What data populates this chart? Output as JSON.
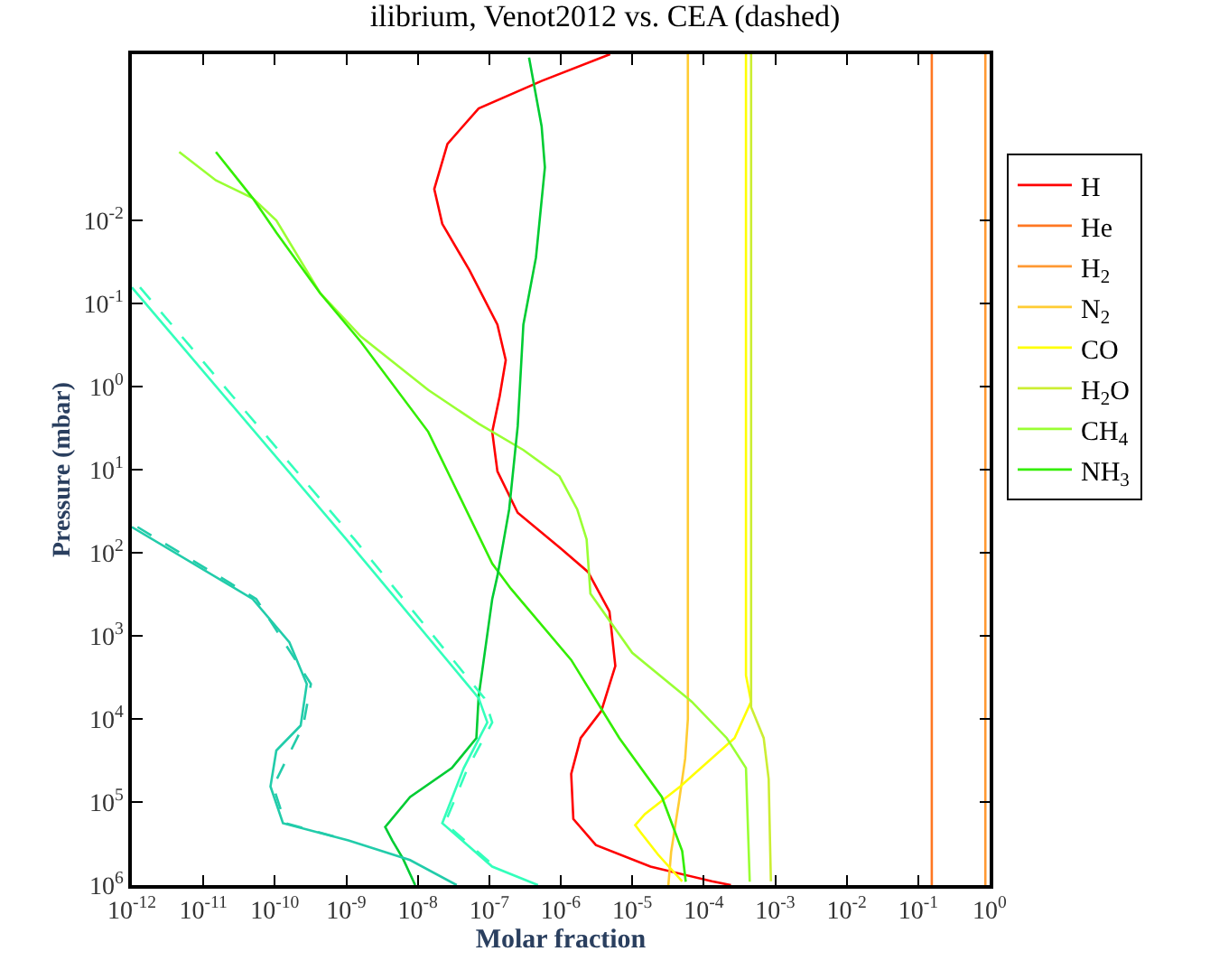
{
  "chart_data": {
    "type": "line",
    "title": "ilibrium, Venot2012 vs. CEA (dashed)",
    "xlabel": "Molar fraction",
    "ylabel": "Pressure (mbar)",
    "log": "xy",
    "legend": "right",
    "marker": "none",
    "line_style": "solid",
    "xlim": [
      1e-12,
      1
    ],
    "ylim": [
      1000000.0,
      0.0001
    ],
    "xticks": [
      {
        "value": 1e-12,
        "label": "10$^{-12}$"
      },
      {
        "value": 1e-11,
        "label": "10$^{-11}$"
      },
      {
        "value": 1e-10,
        "label": "10$^{-10}$"
      },
      {
        "value": 1e-09,
        "label": "10$^{-9}$"
      },
      {
        "value": 1e-08,
        "label": "10$^{-8}$"
      },
      {
        "value": 1e-07,
        "label": "10$^{-7}$"
      },
      {
        "value": 1e-06,
        "label": "10$^{-6}$"
      },
      {
        "value": 1e-05,
        "label": "10$^{-5}$"
      },
      {
        "value": 0.0001,
        "label": "10$^{-4}$"
      },
      {
        "value": 0.001,
        "label": "10$^{-3}$"
      },
      {
        "value": 0.01,
        "label": "10$^{-2}$"
      },
      {
        "value": 0.1,
        "label": "10$^{-1}$"
      },
      {
        "value": 1,
        "label": "10$^{0}$"
      }
    ],
    "yticks": [
      {
        "value": 0.01,
        "label": "10$^{-2}$"
      },
      {
        "value": 0.1,
        "label": "10$^{-1}$"
      },
      {
        "value": 1,
        "label": "10$^{0}$"
      },
      {
        "value": 10,
        "label": "10$^{1}$"
      },
      {
        "value": 100,
        "label": "10$^{2}$"
      },
      {
        "value": 1000,
        "label": "10$^{3}$"
      },
      {
        "value": 10000.0,
        "label": "10$^{4}$"
      },
      {
        "value": 100000.0,
        "label": "10$^{5}$"
      },
      {
        "value": 1000000.0,
        "label": "10$^{6}$"
      }
    ],
    "series": [
      {
        "name": "H",
        "color": "#ff0000",
        "x": [
          4.9e-06,
          5.4e-07,
          7.1e-08,
          2.6e-08,
          1.7e-08,
          2.2e-08,
          5.3e-08,
          1.3e-07,
          1.7e-07,
          1.4e-07,
          1.1e-07,
          1.3e-07,
          2.5e-07,
          1e-06,
          2.4e-06,
          4.8e-06,
          5.8e-06,
          3.7e-06,
          1.9e-06,
          1.4e-06,
          1.5e-06,
          3.1e-06,
          1.8e-05,
          0.00013,
          0.00024
        ],
        "values": [
          0.0001,
          0.00021,
          0.00045,
          0.0012,
          0.0042,
          0.011,
          0.04,
          0.18,
          0.48,
          1.3,
          3.5,
          10.5,
          33,
          89,
          170,
          510,
          2300,
          8000,
          17000.0,
          46000.0,
          160000.0,
          330000.0,
          600000.0,
          900000.0,
          1000000.0
        ]
      },
      {
        "name": "He",
        "color": "#ff7722",
        "x": [
          0.155,
          0.155
        ],
        "values": [
          0.0001,
          1000000.0
        ]
      },
      {
        "name": "H$_{2}$",
        "color": "#ff9933",
        "x": [
          0.87,
          0.87
        ],
        "values": [
          0.0001,
          1000000.0
        ]
      },
      {
        "name": "N$_{2}$",
        "color": "#ffcc33",
        "x": [
          6e-05,
          6e-05,
          5.5e-05,
          4.5e-05,
          3.5e-05,
          3.2e-05
        ],
        "values": [
          0.0001,
          10000.0,
          30000.0,
          100000.0,
          400000.0,
          1000000.0
        ]
      },
      {
        "name": "CO",
        "color": "#ffff00",
        "x": [
          0.00039,
          0.00039,
          0.00046,
          0.00027,
          4.7e-05,
          1.5e-05,
          1.1e-05,
          1.3e-05,
          2.3e-05,
          5e-05
        ],
        "values": [
          0.0001,
          3000,
          6200,
          17000.0,
          65000.0,
          140000.0,
          190000.0,
          230000.0,
          430000.0,
          900000.0
        ]
      },
      {
        "name": "H$_{2}$O",
        "color": "#ccee33",
        "x": [
          0.00046,
          0.00046,
          0.00069,
          0.00081,
          0.00087
        ],
        "values": [
          0.0001,
          7200,
          17000.0,
          53000.0,
          900000.0
        ]
      },
      {
        "name": "CH$_{4}$",
        "color": "#99ff33",
        "x": [
          4.6e-12,
          1.5e-11,
          4.9e-11,
          1.05e-10,
          4.3e-10,
          1.6e-09,
          1.4e-08,
          7.1e-08,
          3e-07,
          9.6e-07,
          1.7e-06,
          2.3e-06,
          2.6e-06,
          1e-05,
          6.8e-05,
          0.00021,
          0.00039,
          0.00044
        ],
        "values": [
          0.0015,
          0.0033,
          0.0054,
          0.01,
          0.075,
          0.25,
          1.1,
          2.8,
          5.8,
          12,
          30,
          69,
          310,
          1600,
          6200,
          17000.0,
          39000.0,
          910000.0
        ]
      },
      {
        "name": "NH$_{3}$",
        "color": "#33ee00",
        "x": [
          1.5e-11,
          4.9e-11,
          1.05e-10,
          4.3e-10,
          1.6e-09,
          1.4e-08,
          3e-08,
          1.1e-07,
          2e-07,
          1.4e-06,
          6.6e-06,
          2.6e-05,
          5e-05,
          5.6e-05
        ],
        "values": [
          0.0015,
          0.0054,
          0.014,
          0.075,
          0.29,
          3.5,
          13.5,
          135,
          270,
          1950,
          17000.0,
          87000.0,
          390000.0,
          910000.0
        ]
      },
      {
        "color": "#00cc33",
        "x": [
          3.6e-07,
          5.4e-07,
          6e-07,
          4.5e-07,
          3e-07,
          2.5e-07,
          1.9e-07,
          1.3e-07,
          1.1e-07,
          7.1e-08,
          6.6e-08,
          3e-08,
          7.8e-09,
          3.5e-09,
          4.4e-09,
          6.2e-09,
          9.2e-09
        ],
        "values": [
          0.00011,
          0.00074,
          0.0023,
          0.028,
          0.18,
          3,
          30,
          190,
          360,
          5400,
          17000.0,
          39000.0,
          87000.0,
          200000.0,
          290000.0,
          480000.0,
          1000000.0
        ]
      },
      {
        "color": "#33ffbb",
        "x": [
          1e-12,
          1e-09,
          2.4e-09,
          7.1e-08,
          9.4e-08,
          4.4e-08,
          2.2e-08,
          1.1e-07,
          4.8e-07
        ],
        "values": [
          0.064,
          69,
          170,
          5600,
          11000.0,
          39000.0,
          180000.0,
          600000.0,
          1000000.0
        ]
      },
      {
        "color": "#22ccaa",
        "x": [
          1e-12,
          4.9e-11,
          1.6e-10,
          2.8e-10,
          2.3e-10,
          1.05e-10,
          8.7e-11,
          1.3e-10,
          1.07e-09,
          7.8e-09,
          3.5e-08
        ],
        "values": [
          49,
          360,
          1200,
          3800,
          12000.0,
          24000.0,
          65000.0,
          180000.0,
          290000.0,
          500000.0,
          1000000.0
        ]
      },
      {
        "color": "#33ffbb",
        "line_style": "dashed",
        "x": [
          1.3e-12,
          1.3e-09,
          8.5e-08,
          1.1e-07,
          5e-08,
          2.4e-08,
          1.2e-07
        ],
        "values": [
          0.064,
          69,
          5600,
          11000.0,
          39000.0,
          180000.0,
          600000.0
        ]
      },
      {
        "color": "#22ccaa",
        "line_style": "dashed",
        "x": [
          1.2e-12,
          5.5e-11,
          3.2e-10,
          2.5e-10,
          9.5e-11,
          1.4e-10,
          1.1e-09
        ],
        "values": [
          49,
          360,
          3800,
          12000.0,
          65000.0,
          180000.0,
          290000.0
        ]
      }
    ]
  }
}
